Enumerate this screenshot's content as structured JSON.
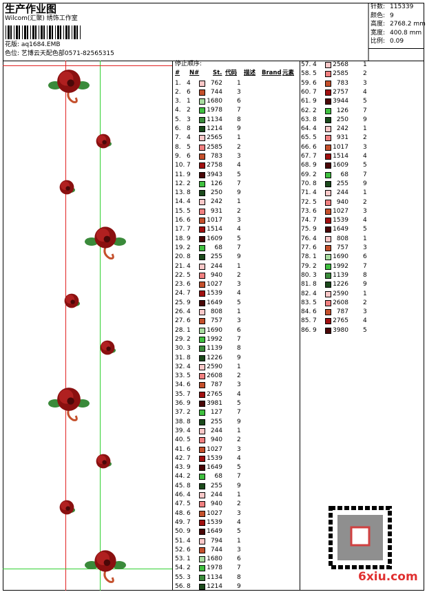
{
  "header": {
    "title": "生产作业图",
    "studio": "Wilcom(汇聚) 绣饰工作室",
    "design_file": "花版: aq1684.EMB",
    "color_info": "色位: 艺博云天配色部0571-82565315"
  },
  "info": [
    [
      "针数:",
      "115339"
    ],
    [
      "颜色:",
      "9"
    ],
    [
      "高度:",
      "2768.2 mm"
    ],
    [
      "宽度:",
      "400.8 mm"
    ],
    [
      "比例:",
      "0.09"
    ]
  ],
  "table": {
    "title": "停止顺序:",
    "columns": [
      "#",
      "N#",
      "St.",
      "代码",
      "描述",
      "Brand",
      "元素"
    ],
    "needle_colors": {
      "1": "#a8dca0",
      "2": "#40c040",
      "3": "#3c8c3c",
      "4": "#fac8c8",
      "5": "#f08080",
      "6": "#c4502c",
      "7": "#a01010",
      "8": "#1c4a1c",
      "9": "#4a0808"
    },
    "rows": [
      [
        "1.",
        4,
        762,
        1
      ],
      [
        "2.",
        6,
        744,
        3
      ],
      [
        "3.",
        1,
        1680,
        6
      ],
      [
        "4.",
        2,
        1978,
        7
      ],
      [
        "5.",
        3,
        1134,
        8
      ],
      [
        "6.",
        8,
        1214,
        9
      ],
      [
        "7.",
        4,
        2565,
        1
      ],
      [
        "8.",
        5,
        2585,
        2
      ],
      [
        "9.",
        6,
        783,
        3
      ],
      [
        "10.",
        7,
        2758,
        4
      ],
      [
        "11.",
        9,
        3943,
        5
      ],
      [
        "12.",
        2,
        126,
        7
      ],
      [
        "13.",
        8,
        250,
        9
      ],
      [
        "14.",
        4,
        242,
        1
      ],
      [
        "15.",
        5,
        931,
        2
      ],
      [
        "16.",
        6,
        1017,
        3
      ],
      [
        "17.",
        7,
        1514,
        4
      ],
      [
        "18.",
        9,
        1609,
        5
      ],
      [
        "19.",
        2,
        68,
        7
      ],
      [
        "20.",
        8,
        255,
        9
      ],
      [
        "21.",
        4,
        244,
        1
      ],
      [
        "22.",
        5,
        940,
        2
      ],
      [
        "23.",
        6,
        1027,
        3
      ],
      [
        "24.",
        7,
        1539,
        4
      ],
      [
        "25.",
        9,
        1649,
        5
      ],
      [
        "26.",
        4,
        808,
        1
      ],
      [
        "27.",
        6,
        757,
        3
      ],
      [
        "28.",
        1,
        1690,
        6
      ],
      [
        "29.",
        2,
        1992,
        7
      ],
      [
        "30.",
        3,
        1139,
        8
      ],
      [
        "31.",
        8,
        1226,
        9
      ],
      [
        "32.",
        4,
        2590,
        1
      ],
      [
        "33.",
        5,
        2608,
        2
      ],
      [
        "34.",
        6,
        787,
        3
      ],
      [
        "35.",
        7,
        2765,
        4
      ],
      [
        "36.",
        9,
        3981,
        5
      ],
      [
        "37.",
        2,
        127,
        7
      ],
      [
        "38.",
        8,
        255,
        9
      ],
      [
        "39.",
        4,
        244,
        1
      ],
      [
        "40.",
        5,
        940,
        2
      ],
      [
        "41.",
        6,
        1027,
        3
      ],
      [
        "42.",
        7,
        1539,
        4
      ],
      [
        "43.",
        9,
        1649,
        5
      ],
      [
        "44.",
        2,
        68,
        7
      ],
      [
        "45.",
        8,
        255,
        9
      ],
      [
        "46.",
        4,
        244,
        1
      ],
      [
        "47.",
        5,
        940,
        2
      ],
      [
        "48.",
        6,
        1027,
        3
      ],
      [
        "49.",
        7,
        1539,
        4
      ],
      [
        "50.",
        9,
        1649,
        5
      ],
      [
        "51.",
        4,
        794,
        1
      ],
      [
        "52.",
        6,
        744,
        3
      ],
      [
        "53.",
        1,
        1680,
        6
      ],
      [
        "54.",
        2,
        1978,
        7
      ],
      [
        "55.",
        3,
        1134,
        8
      ],
      [
        "56.",
        8,
        1214,
        9
      ],
      [
        "57.",
        4,
        2568,
        1
      ],
      [
        "58.",
        5,
        2585,
        2
      ],
      [
        "59.",
        6,
        783,
        3
      ],
      [
        "60.",
        7,
        2757,
        4
      ],
      [
        "61.",
        9,
        3944,
        5
      ],
      [
        "62.",
        2,
        126,
        7
      ],
      [
        "63.",
        8,
        250,
        9
      ],
      [
        "64.",
        4,
        242,
        1
      ],
      [
        "65.",
        5,
        931,
        2
      ],
      [
        "66.",
        6,
        1017,
        3
      ],
      [
        "67.",
        7,
        1514,
        4
      ],
      [
        "68.",
        9,
        1609,
        5
      ],
      [
        "69.",
        2,
        68,
        7
      ],
      [
        "70.",
        8,
        255,
        9
      ],
      [
        "71.",
        4,
        244,
        1
      ],
      [
        "72.",
        5,
        940,
        2
      ],
      [
        "73.",
        6,
        1027,
        3
      ],
      [
        "74.",
        7,
        1539,
        4
      ],
      [
        "75.",
        9,
        1649,
        5
      ],
      [
        "76.",
        4,
        808,
        1
      ],
      [
        "77.",
        6,
        757,
        3
      ],
      [
        "78.",
        1,
        1690,
        6
      ],
      [
        "79.",
        2,
        1992,
        7
      ],
      [
        "80.",
        3,
        1139,
        8
      ],
      [
        "81.",
        8,
        1226,
        9
      ],
      [
        "82.",
        4,
        2590,
        1
      ],
      [
        "83.",
        5,
        2608,
        2
      ],
      [
        "84.",
        6,
        787,
        3
      ],
      [
        "85.",
        7,
        2765,
        4
      ],
      [
        "86.",
        9,
        3980,
        5
      ]
    ]
  },
  "watermark": "6xiu.com"
}
